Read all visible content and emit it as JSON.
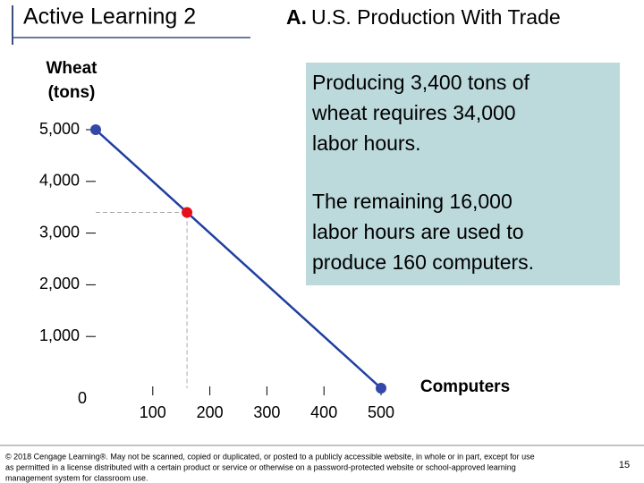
{
  "chart_data": {
    "type": "line",
    "title": "Active Learning 2",
    "heading_label": "A.",
    "heading": "U.S. Production With Trade",
    "y_label_lines": [
      "Wheat",
      "(tons)"
    ],
    "x_label": "Computers",
    "series": [
      {
        "x": [
          0,
          160,
          500
        ],
        "values": [
          5000,
          3400,
          0
        ],
        "color": "#1f3fa0",
        "point_colors": [
          "#3348a8",
          "#e8101a",
          "#3348a8"
        ]
      }
    ],
    "xlim": [
      0,
      500
    ],
    "ylim": [
      0,
      5000
    ],
    "xticks": [
      100,
      200,
      300,
      400,
      500
    ],
    "yticks": [
      0,
      {
        "value": 1000,
        "label": "1,000"
      },
      {
        "value": 2000,
        "label": "2,000"
      },
      {
        "value": 3000,
        "label": "3,000"
      },
      {
        "value": 4000,
        "label": "4,000"
      },
      {
        "value": 5000,
        "label": "5,000"
      }
    ],
    "annotation_lines": [
      [
        "Producing 3,400 tons of",
        "wheat requires 34,000",
        "labor hours."
      ],
      [
        "The remaining 16,000",
        "labor hours are used to",
        "produce 160 computers."
      ]
    ],
    "annotation_color": "#bcd9dc",
    "footer_lines": [
      "© 2018 Cengage Learning®. May not be scanned, copied or duplicated, or posted to a publicly accessible website, in whole or in part, except for use",
      "as permitted in a license distributed with a certain product or service or otherwise on a password-protected website or school-approved learning",
      "management system for classroom use."
    ],
    "page_number": "15"
  }
}
